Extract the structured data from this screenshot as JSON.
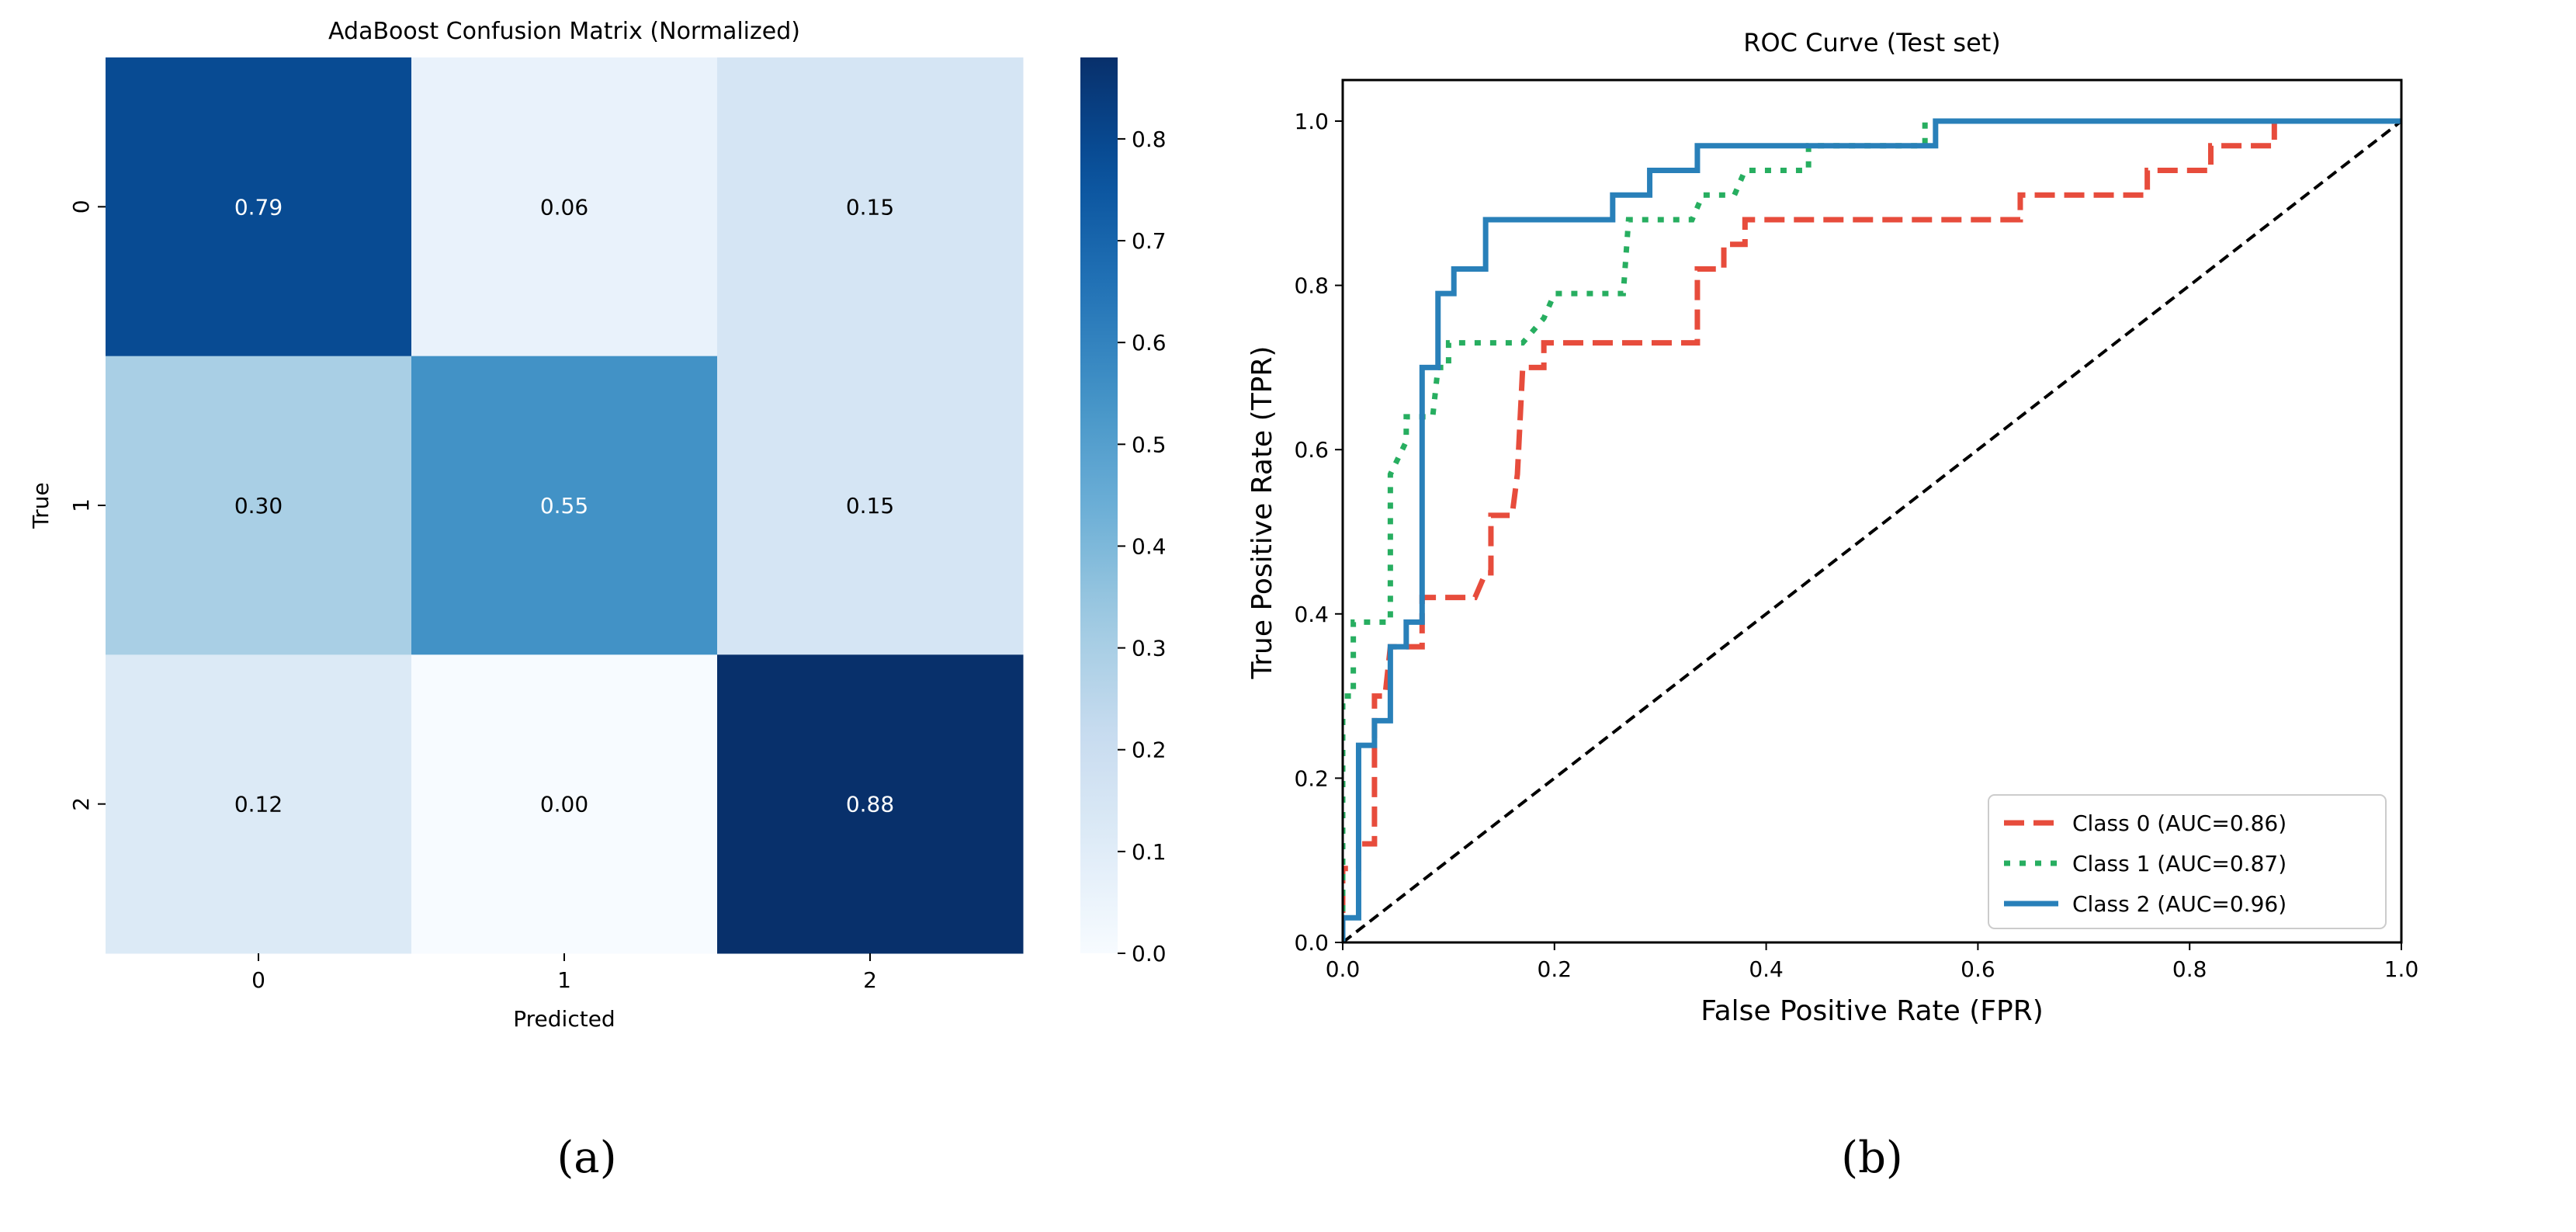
{
  "chart_data": [
    {
      "type": "heatmap",
      "title": "AdaBoost Confusion Matrix (Normalized)",
      "xlabel": "Predicted",
      "ylabel": "True",
      "x_categories": [
        "0",
        "1",
        "2"
      ],
      "y_categories": [
        "0",
        "1",
        "2"
      ],
      "values": [
        [
          0.79,
          0.06,
          0.15
        ],
        [
          0.3,
          0.55,
          0.15
        ],
        [
          0.12,
          0.0,
          0.88
        ]
      ],
      "value_labels": [
        [
          "0.79",
          "0.06",
          "0.15"
        ],
        [
          "0.30",
          "0.55",
          "0.15"
        ],
        [
          "0.12",
          "0.00",
          "0.88"
        ]
      ],
      "colormap": "Blues",
      "colorbar": {
        "range": [
          0,
          0.88
        ],
        "ticks": [
          0,
          0.1,
          0.2,
          0.3,
          0.4,
          0.5,
          0.6,
          0.7,
          0.8
        ],
        "tick_labels": [
          "0.0",
          "0.1",
          "0.2",
          "0.3",
          "0.4",
          "0.5",
          "0.6",
          "0.7",
          "0.8"
        ]
      },
      "caption": "(a)"
    },
    {
      "type": "line",
      "title": "ROC Curve (Test set)",
      "xlabel": "False Positive Rate (FPR)",
      "ylabel": "True Positive Rate (TPR)",
      "xlim": [
        0,
        1
      ],
      "ylim": [
        0,
        1.05
      ],
      "xticks": [
        0,
        0.2,
        0.4,
        0.6,
        0.8,
        1.0
      ],
      "xtick_labels": [
        "0.0",
        "0.2",
        "0.4",
        "0.6",
        "0.8",
        "1.0"
      ],
      "yticks": [
        0,
        0.2,
        0.4,
        0.6,
        0.8,
        1.0
      ],
      "ytick_labels": [
        "0.0",
        "0.2",
        "0.4",
        "0.6",
        "0.8",
        "1.0"
      ],
      "legend_position": "lower-right",
      "series": [
        {
          "name": "Class 0 (AUC=0.86)",
          "color": "#e74c3c",
          "style": "dashed",
          "x": [
            0,
            0,
            0.015,
            0.015,
            0.03,
            0.03,
            0.04,
            0.045,
            0.075,
            0.075,
            0.125,
            0.135,
            0.14,
            0.14,
            0.16,
            0.165,
            0.17,
            0.19,
            0.19,
            0.335,
            0.335,
            0.36,
            0.36,
            0.38,
            0.38,
            0.64,
            0.64,
            0.76,
            0.76,
            0.82,
            0.82,
            0.88,
            0.88,
            1.0
          ],
          "y": [
            0,
            0.09,
            0.09,
            0.12,
            0.12,
            0.3,
            0.3,
            0.36,
            0.36,
            0.42,
            0.42,
            0.45,
            0.45,
            0.52,
            0.52,
            0.57,
            0.7,
            0.7,
            0.73,
            0.73,
            0.82,
            0.82,
            0.85,
            0.85,
            0.88,
            0.88,
            0.91,
            0.91,
            0.94,
            0.94,
            0.97,
            0.97,
            1.0,
            1.0
          ]
        },
        {
          "name": "Class 1 (AUC=0.87)",
          "color": "#27ae60",
          "style": "dotted",
          "x": [
            0,
            0,
            0.01,
            0.01,
            0.045,
            0.045,
            0.06,
            0.06,
            0.085,
            0.09,
            0.1,
            0.1,
            0.17,
            0.19,
            0.2,
            0.265,
            0.27,
            0.33,
            0.34,
            0.37,
            0.38,
            0.44,
            0.44,
            0.55,
            0.55,
            1.0
          ],
          "y": [
            0,
            0.3,
            0.3,
            0.39,
            0.39,
            0.57,
            0.61,
            0.64,
            0.64,
            0.7,
            0.7,
            0.73,
            0.73,
            0.76,
            0.79,
            0.79,
            0.88,
            0.88,
            0.91,
            0.91,
            0.94,
            0.94,
            0.97,
            0.97,
            1.0,
            1.0
          ]
        },
        {
          "name": "Class 2 (AUC=0.96)",
          "color": "#2980b9",
          "style": "solid",
          "x": [
            0,
            0,
            0.015,
            0.015,
            0.03,
            0.03,
            0.045,
            0.045,
            0.06,
            0.06,
            0.075,
            0.075,
            0.09,
            0.09,
            0.105,
            0.105,
            0.135,
            0.135,
            0.255,
            0.255,
            0.29,
            0.29,
            0.335,
            0.335,
            0.56,
            0.56,
            1.0
          ],
          "y": [
            0,
            0.03,
            0.03,
            0.24,
            0.24,
            0.27,
            0.27,
            0.36,
            0.36,
            0.39,
            0.39,
            0.7,
            0.7,
            0.79,
            0.79,
            0.82,
            0.82,
            0.88,
            0.88,
            0.91,
            0.91,
            0.94,
            0.94,
            0.97,
            0.97,
            1.0,
            1.0
          ]
        }
      ],
      "reference_line": {
        "x": [
          0,
          1
        ],
        "y": [
          0,
          1
        ],
        "color": "#000000",
        "style": "dashed"
      },
      "caption": "(b)"
    }
  ]
}
